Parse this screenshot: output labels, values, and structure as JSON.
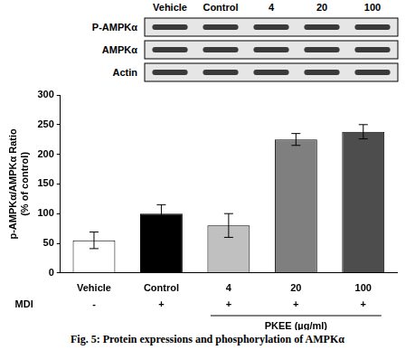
{
  "blot": {
    "lanes": [
      "Vehicle",
      "Control",
      "4",
      "20",
      "100"
    ],
    "rows": [
      "P-AMPKα",
      "AMPKα",
      "Actin"
    ]
  },
  "chart_data": {
    "type": "bar",
    "categories": [
      "Vehicle",
      "Control",
      "4",
      "20",
      "100"
    ],
    "values": [
      55,
      100,
      80,
      225,
      238
    ],
    "errors": [
      14,
      15,
      20,
      10,
      12
    ],
    "colors": [
      "#ffffff",
      "#000000",
      "#c0c0c0",
      "#7f7f7f",
      "#4d4d4d"
    ],
    "y_label": [
      "p-AMPKα/AMPKα Ratio",
      "(% of control)"
    ],
    "ylim": [
      0,
      300
    ],
    "yticks": [
      0,
      50,
      100,
      150,
      200,
      250,
      300
    ],
    "grid": false
  },
  "treatments": {
    "MDI": {
      "label": "MDI",
      "signs": [
        "-",
        "+",
        "+",
        "+",
        "+"
      ]
    },
    "PKEE": {
      "label": "PKEE (µg/ml)",
      "categories": [
        "4",
        "20",
        "100"
      ]
    }
  },
  "caption": "Fig. 5: Protein expressions and phosphorylation of AMPKα"
}
